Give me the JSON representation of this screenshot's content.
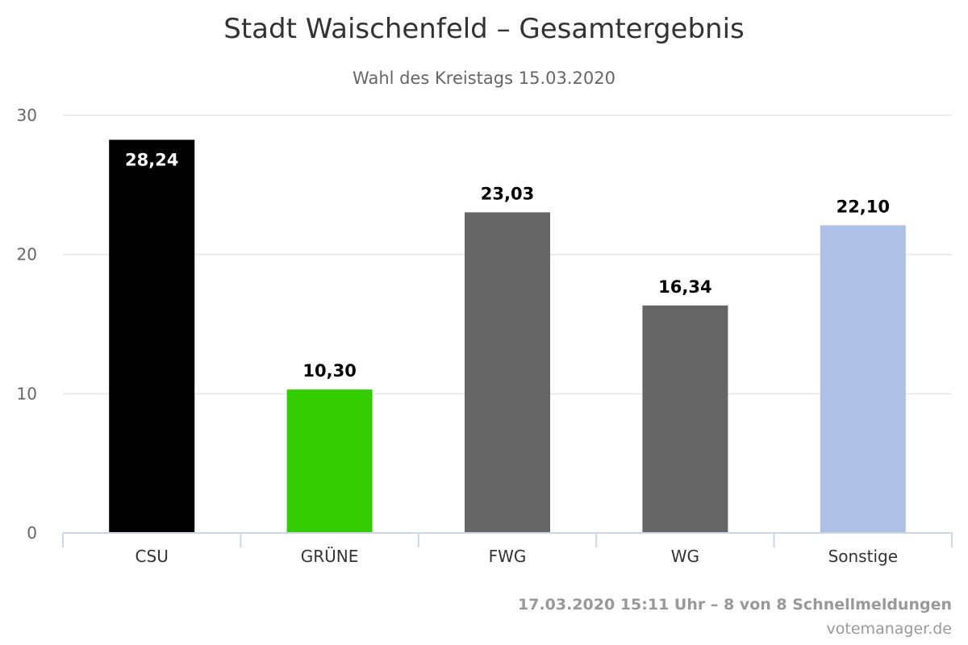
{
  "chart_data": {
    "type": "bar",
    "title": "Stadt Waischenfeld – Gesamtergebnis",
    "subtitle": "Wahl des Kreistags 15.03.2020",
    "categories": [
      "CSU",
      "GRÜNE",
      "FWG",
      "WG",
      "Sonstige"
    ],
    "values": [
      28.24,
      10.3,
      23.03,
      16.34,
      22.1
    ],
    "value_labels": [
      "28,24",
      "10,30",
      "23,03",
      "16,34",
      "22,10"
    ],
    "colors": [
      "#000000",
      "#33cc00",
      "#666666",
      "#666666",
      "#aec0e6"
    ],
    "ylim": [
      0,
      30
    ],
    "yticks": [
      0,
      10,
      20,
      30
    ],
    "ytick_labels": [
      "0",
      "10",
      "20",
      "30"
    ],
    "grid": true,
    "legend": "none"
  },
  "footer": {
    "status": "17.03.2020 15:11 Uhr – 8 von 8 Schnellmeldungen",
    "credit": "votemanager.de"
  }
}
